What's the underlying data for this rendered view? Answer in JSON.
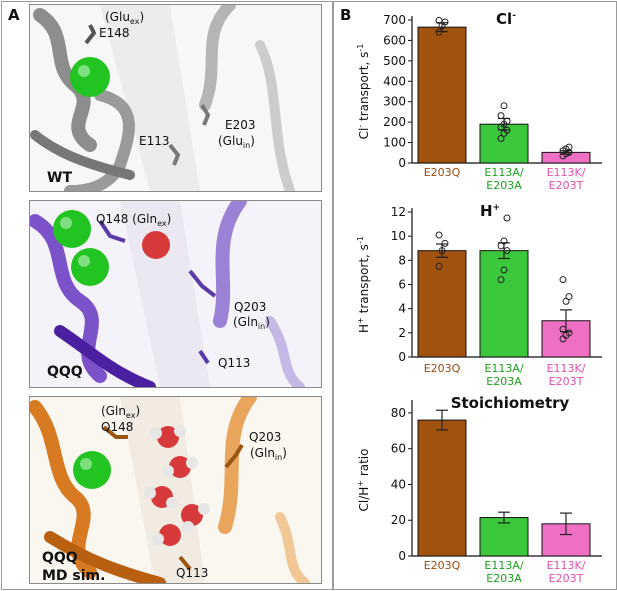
{
  "figure": {
    "panel_a_letter": "A",
    "panel_b_letter": "B"
  },
  "panel_a": {
    "wt": {
      "label": "WT",
      "glu_ex_main": "(Glu",
      "glu_ex_sub": "ex",
      "glu_ex_close": ")",
      "e148": "E148",
      "e113": "E113",
      "e203": "E203",
      "glu_in_main": "(Glu",
      "glu_in_sub": "in",
      "glu_in_close": ")"
    },
    "qqq": {
      "label": "QQQ",
      "q148_main": "Q148 (Gln",
      "q148_sub": "ex",
      "q148_close": ")",
      "q203": "Q203",
      "gln_in_main": "(Gln",
      "gln_in_sub": "in",
      "gln_in_close": ")",
      "q113": "Q113"
    },
    "md": {
      "label_line1": "QQQ",
      "label_line2": "MD sim.",
      "gln_ex_main": "(Gln",
      "gln_ex_sub": "ex",
      "gln_ex_close": ")",
      "q148": "Q148",
      "q203": "Q203",
      "gln_in_main": "(Gln",
      "gln_in_sub": "in",
      "gln_in_close": ")",
      "q113": "Q113"
    }
  },
  "colors": {
    "brown": "#a0520f",
    "green": "#3cc83c",
    "pink": "#ef6fc4",
    "label_brown": "#9a4a10",
    "label_green": "#1ea01e",
    "label_pink": "#e050b0",
    "wt_protein": "#8d8d8d",
    "qqq_protein": "#7b52c9",
    "md_protein": "#d77a22",
    "chloride": "#22c422",
    "water_o": "#d63a3a"
  },
  "chart_data": [
    {
      "type": "bar",
      "title": "Cl",
      "title_sup": "-",
      "ylabel_parts": [
        "Cl",
        "-",
        " transport, s",
        "-1"
      ],
      "ylim": [
        0,
        700
      ],
      "yticks": [
        0,
        100,
        200,
        300,
        400,
        500,
        600,
        700
      ],
      "categories": [
        "E203Q",
        "E113A/ E203A",
        "E113K/ E203T"
      ],
      "category_lines": [
        [
          "E203Q"
        ],
        [
          "E113A/",
          "E203A"
        ],
        [
          "E113K/",
          "E203T"
        ]
      ],
      "values": [
        665,
        190,
        52
      ],
      "errors": [
        22,
        28,
        8
      ],
      "points": [
        [
          640,
          672,
          690,
          698
        ],
        [
          120,
          145,
          160,
          175,
          190,
          205,
          232,
          280
        ],
        [
          35,
          45,
          52,
          60,
          68,
          78
        ]
      ]
    },
    {
      "type": "bar",
      "title": "H",
      "title_sup": "+",
      "ylabel_parts": [
        "H",
        "+",
        " transport, s",
        "-1"
      ],
      "ylim": [
        0,
        12
      ],
      "yticks": [
        0,
        2,
        4,
        6,
        8,
        10,
        12
      ],
      "categories": [
        "E203Q",
        "E113A/ E203A",
        "E113K/ E203T"
      ],
      "category_lines": [
        [
          "E203Q"
        ],
        [
          "E113A/",
          "E203A"
        ],
        [
          "E113K/",
          "E203T"
        ]
      ],
      "values": [
        8.8,
        8.8,
        3.0
      ],
      "errors": [
        0.55,
        0.65,
        0.9
      ],
      "points": [
        [
          7.5,
          8.8,
          9.4,
          10.1
        ],
        [
          6.4,
          7.2,
          8.8,
          9.2,
          9.6,
          11.5
        ],
        [
          1.5,
          1.8,
          2.0,
          2.3,
          4.6,
          5.0,
          6.4
        ]
      ]
    },
    {
      "type": "bar",
      "title": "Stoichiometry",
      "ylabel_parts": [
        "Cl",
        "",
        "/H",
        "+",
        " ratio"
      ],
      "ylim": [
        0,
        85
      ],
      "yticks": [
        0,
        20,
        40,
        60,
        80
      ],
      "categories": [
        "E203Q",
        "E113A/ E203A",
        "E113K/ E203T"
      ],
      "category_lines": [
        [
          "E203Q"
        ],
        [
          "E113A/",
          "E203A"
        ],
        [
          "E113K/",
          "E203T"
        ]
      ],
      "values": [
        76,
        21.5,
        18
      ],
      "errors": [
        5.5,
        3,
        6
      ],
      "points": []
    }
  ]
}
